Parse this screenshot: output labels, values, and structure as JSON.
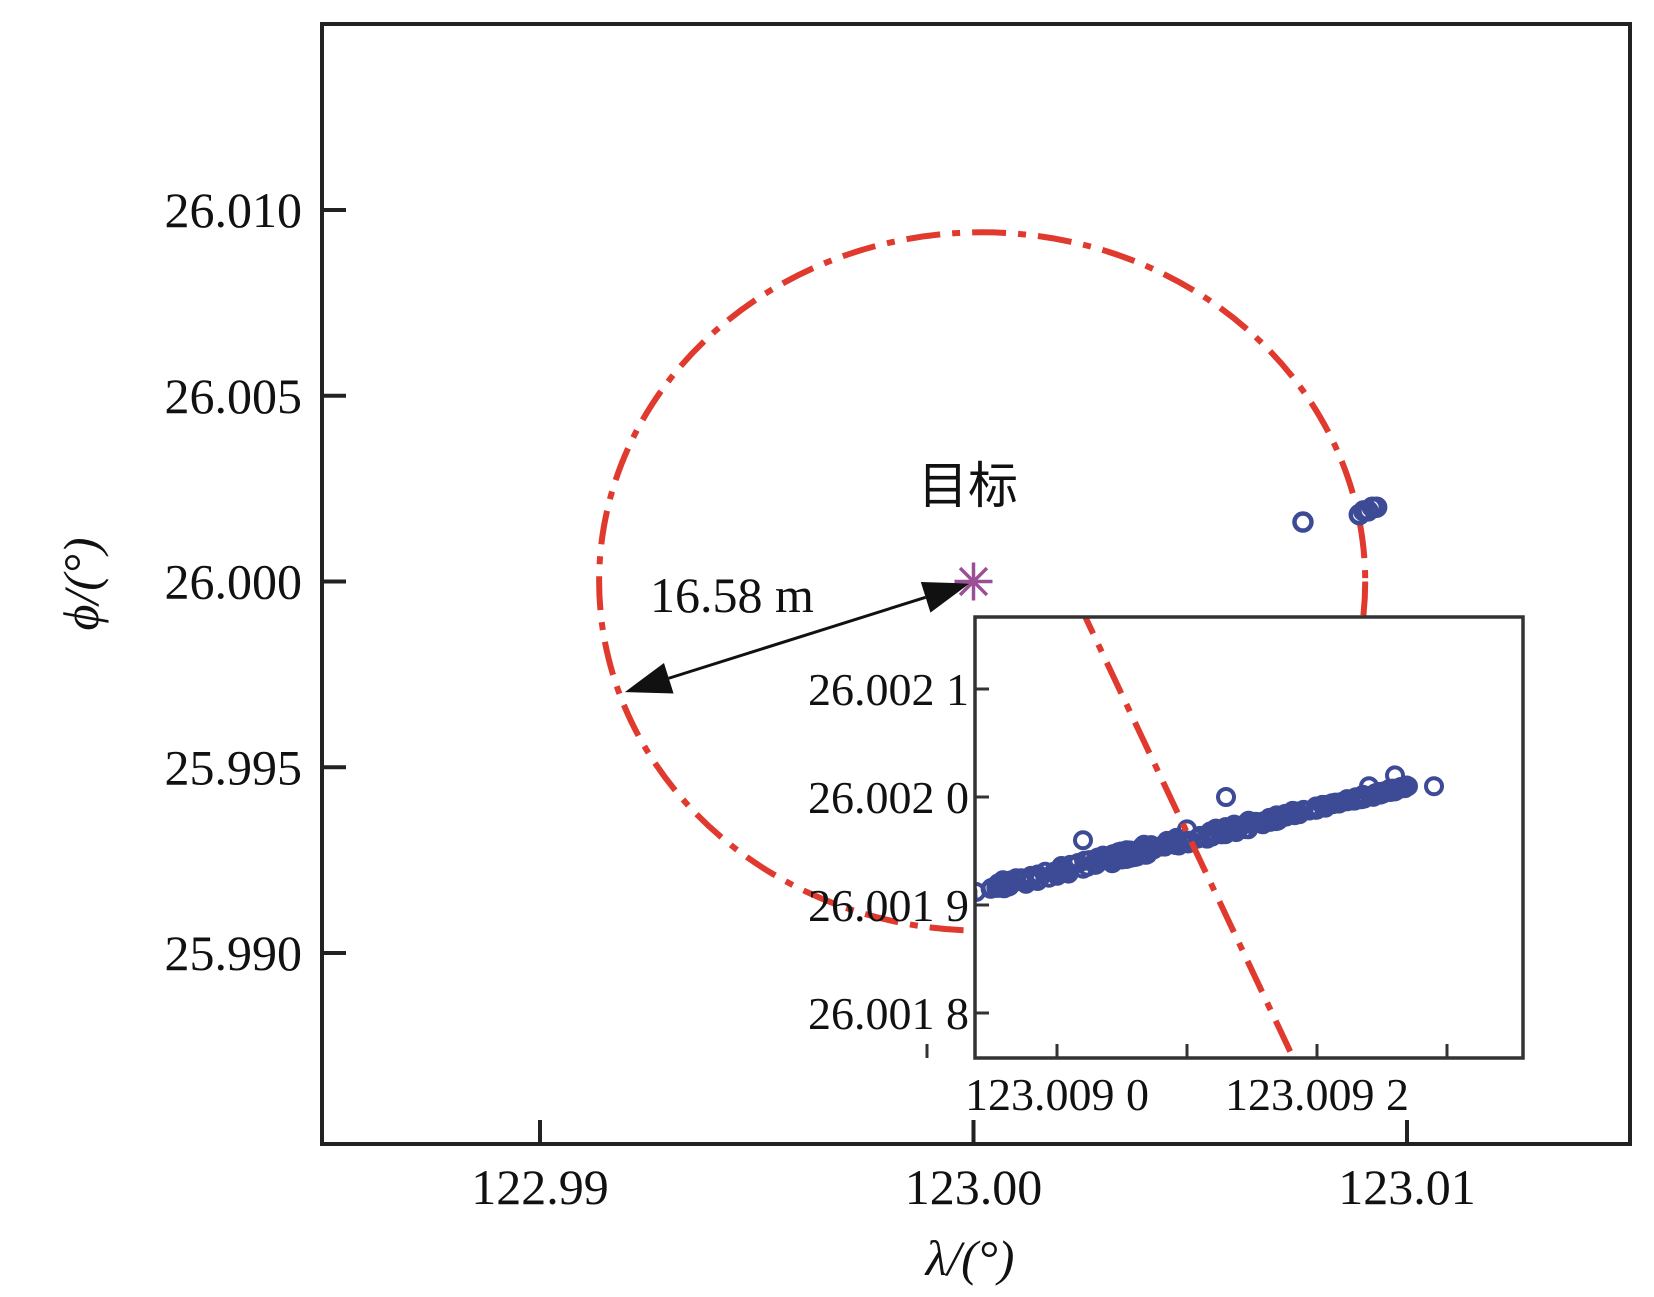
{
  "chart_data": {
    "type": "scatter",
    "xlabel": "λ/(°)",
    "ylabel": "ϕ/(°)",
    "xlim": [
      122.995,
      123.0125
    ],
    "ylim": [
      25.9855,
      26.0145
    ],
    "xticks": [
      122.99,
      123.0,
      123.01
    ],
    "xtick_labels": [
      "122.99",
      "123.00",
      "123.01"
    ],
    "yticks": [
      25.99,
      25.995,
      26.0,
      26.005,
      26.01
    ],
    "ytick_labels": [
      "25.990",
      "25.995",
      "26.000",
      "26.005",
      "26.010"
    ],
    "grid": false,
    "target": {
      "label": "目标",
      "x": 123.0,
      "y": 26.0,
      "marker": "asterisk",
      "color": "#9b4f96"
    },
    "circle": {
      "center_x": 123.0002,
      "center_y": 26.0,
      "radius_deg": 0.0094,
      "style": "dash-dot",
      "color": "#e03a2f"
    },
    "radius_annotation": {
      "label": "16.58 m"
    },
    "points": [
      {
        "x": 123.0076,
        "y": 26.0016
      },
      {
        "x": 123.0089,
        "y": 26.0018
      },
      {
        "x": 123.009,
        "y": 26.0019
      },
      {
        "x": 123.0091,
        "y": 26.0019
      },
      {
        "x": 123.0092,
        "y": 26.002
      },
      {
        "x": 123.0093,
        "y": 26.002
      }
    ],
    "point_color": "#3d4a95",
    "inset": {
      "xlim": [
        123.00888,
        123.0093
      ],
      "ylim": [
        26.00176,
        26.00217
      ],
      "xticks": [
        123.0089,
        123.009,
        123.0091,
        123.0092,
        123.0093
      ],
      "xtick_labels": [
        "",
        "123.009 0",
        "",
        "123.009 2",
        ""
      ],
      "yticks": [
        26.0018,
        26.0019,
        26.002,
        26.0021
      ],
      "ytick_labels": [
        "26.001 8",
        "26.001 9",
        "26.002 0",
        "26.002 1"
      ],
      "cluster": {
        "start": [
          123.00886,
          26.00189
        ],
        "end": [
          123.00927,
          26.00201
        ],
        "count": 320,
        "spread": 3.5e-06
      },
      "outliers": [
        {
          "x": 123.00926,
          "y": 26.00202
        },
        {
          "x": 123.00927,
          "y": 26.00201
        },
        {
          "x": 123.00929,
          "y": 26.00201
        },
        {
          "x": 123.00924,
          "y": 26.00201
        },
        {
          "x": 123.00913,
          "y": 26.002
        },
        {
          "x": 123.00902,
          "y": 26.00196
        },
        {
          "x": 123.0091,
          "y": 26.00197
        }
      ]
    }
  }
}
